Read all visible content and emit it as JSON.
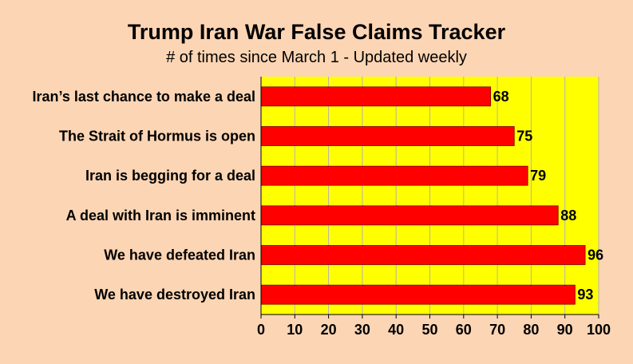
{
  "chart_data": {
    "type": "bar",
    "orientation": "horizontal",
    "title": "Trump Iran War False Claims Tracker",
    "subtitle": "# of times since March 1 - Updated weekly",
    "categories": [
      "Iran’s last chance to make a deal",
      "The Strait of Hormus is open",
      "Iran is begging for a deal",
      "A deal with Iran is imminent",
      "We have defeated Iran",
      "We have destroyed Iran"
    ],
    "values": [
      68,
      75,
      79,
      88,
      96,
      93
    ],
    "value_labels": [
      "68",
      "75",
      "79",
      "88",
      "96",
      "93"
    ],
    "xlim": [
      0,
      100
    ],
    "x_ticks": [
      0,
      10,
      20,
      30,
      40,
      50,
      60,
      70,
      80,
      90,
      100
    ],
    "x_tick_labels": [
      "0",
      "10",
      "20",
      "30",
      "40",
      "50",
      "60",
      "70",
      "80",
      "90",
      "100"
    ],
    "grid": true,
    "legend": "none",
    "colors": {
      "background": "#fcd5b4",
      "plot_area": "#ffff00",
      "bar": "#ff0000",
      "bar_border": "#7a0000",
      "gridline": "#b3b3b3",
      "axis": "#000000"
    }
  }
}
